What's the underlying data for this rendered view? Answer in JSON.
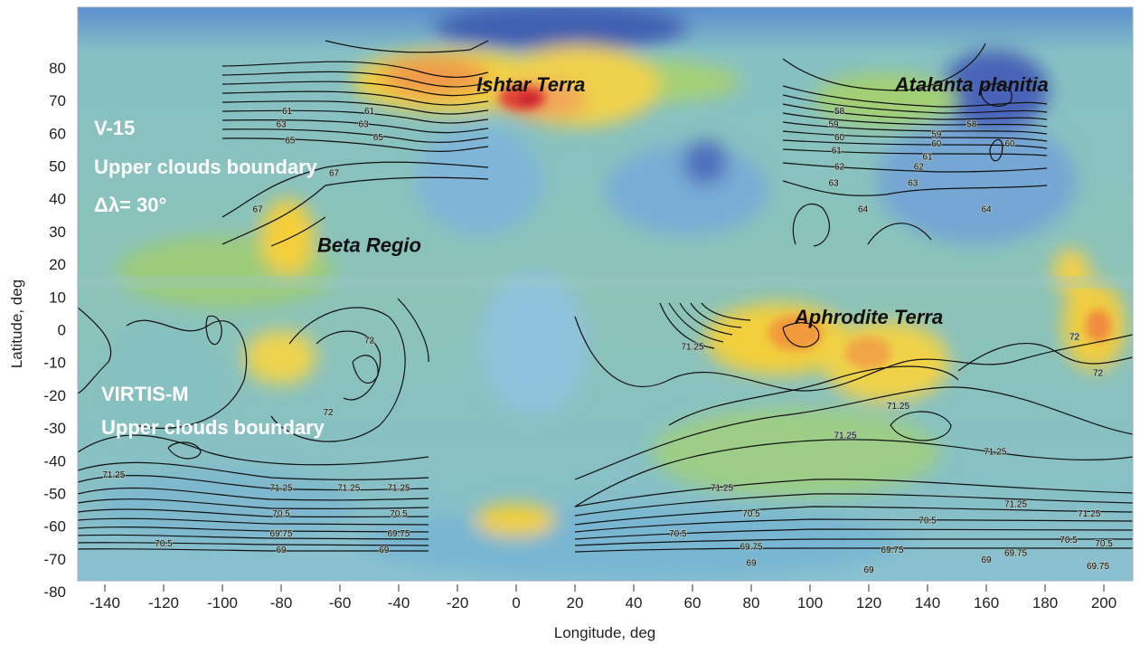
{
  "map": {
    "x_axis_title": "Longitude, deg",
    "y_axis_title": "Latitude, deg",
    "x_ticks": [
      -140,
      -120,
      -100,
      -80,
      -60,
      -40,
      -20,
      0,
      20,
      40,
      60,
      80,
      100,
      120,
      140,
      160,
      180,
      200
    ],
    "y_ticks": [
      80,
      70,
      60,
      50,
      40,
      30,
      20,
      10,
      0,
      -10,
      -20,
      -30,
      -40,
      -50,
      -60,
      -70,
      -80
    ],
    "region_labels": [
      {
        "text": "Ishtar Terra",
        "lon": 5,
        "lat": 75
      },
      {
        "text": "Atalanta planitia",
        "lon": 155,
        "lat": 75
      },
      {
        "text": "Beta Regio",
        "lon": -50,
        "lat": 26
      },
      {
        "text": "Aphrodite Terra",
        "lon": 120,
        "lat": 4
      }
    ],
    "dataset_blocks": [
      {
        "lines": [
          "V-15",
          "Upper clouds boundary",
          "Δλ= 30°"
        ]
      },
      {
        "lines": [
          "VIRTIS-M",
          "Upper clouds boundary"
        ]
      }
    ],
    "contour_labels": [
      {
        "text": "61",
        "lon": -78,
        "lat": 67
      },
      {
        "text": "61",
        "lon": -50,
        "lat": 67
      },
      {
        "text": "63",
        "lon": -80,
        "lat": 63
      },
      {
        "text": "63",
        "lon": -52,
        "lat": 63
      },
      {
        "text": "65",
        "lon": -77,
        "lat": 58
      },
      {
        "text": "65",
        "lon": -47,
        "lat": 59
      },
      {
        "text": "67",
        "lon": -62,
        "lat": 48
      },
      {
        "text": "67",
        "lon": -88,
        "lat": 37
      },
      {
        "text": "58",
        "lon": 110,
        "lat": 67
      },
      {
        "text": "58",
        "lon": 155,
        "lat": 63
      },
      {
        "text": "59",
        "lon": 108,
        "lat": 63
      },
      {
        "text": "59",
        "lon": 143,
        "lat": 60
      },
      {
        "text": "60",
        "lon": 110,
        "lat": 59
      },
      {
        "text": "60",
        "lon": 143,
        "lat": 57
      },
      {
        "text": "61",
        "lon": 109,
        "lat": 55
      },
      {
        "text": "61",
        "lon": 140,
        "lat": 53
      },
      {
        "text": "62",
        "lon": 110,
        "lat": 50
      },
      {
        "text": "62",
        "lon": 137,
        "lat": 50
      },
      {
        "text": "63",
        "lon": 108,
        "lat": 45
      },
      {
        "text": "63",
        "lon": 135,
        "lat": 45
      },
      {
        "text": "64",
        "lon": 118,
        "lat": 37
      },
      {
        "text": "64",
        "lon": 160,
        "lat": 37
      },
      {
        "text": "60",
        "lon": 168,
        "lat": 57
      },
      {
        "text": "72",
        "lon": -50,
        "lat": -3
      },
      {
        "text": "72",
        "lon": -64,
        "lat": -25
      },
      {
        "text": "72",
        "lon": 190,
        "lat": -2
      },
      {
        "text": "72",
        "lon": 198,
        "lat": -13
      },
      {
        "text": "71.25",
        "lon": 60,
        "lat": -5
      },
      {
        "text": "71.25",
        "lon": 130,
        "lat": -23
      },
      {
        "text": "71.25",
        "lon": 112,
        "lat": -32
      },
      {
        "text": "71.25",
        "lon": 163,
        "lat": -37
      },
      {
        "text": "71.25",
        "lon": -137,
        "lat": -44
      },
      {
        "text": "71.25",
        "lon": -80,
        "lat": -48
      },
      {
        "text": "71.25",
        "lon": -57,
        "lat": -48
      },
      {
        "text": "71.25",
        "lon": -40,
        "lat": -48
      },
      {
        "text": "71.25",
        "lon": 70,
        "lat": -48
      },
      {
        "text": "71.25",
        "lon": 170,
        "lat": -53
      },
      {
        "text": "71.25",
        "lon": 195,
        "lat": -56
      },
      {
        "text": "70.5",
        "lon": -80,
        "lat": -56
      },
      {
        "text": "70.5",
        "lon": -40,
        "lat": -56
      },
      {
        "text": "70.5",
        "lon": -120,
        "lat": -65
      },
      {
        "text": "70.5",
        "lon": 55,
        "lat": -62
      },
      {
        "text": "70.5",
        "lon": 80,
        "lat": -56
      },
      {
        "text": "70.5",
        "lon": 140,
        "lat": -58
      },
      {
        "text": "70.5",
        "lon": 188,
        "lat": -64
      },
      {
        "text": "70.5",
        "lon": 200,
        "lat": -65
      },
      {
        "text": "69.75",
        "lon": -80,
        "lat": -62
      },
      {
        "text": "69.75",
        "lon": -40,
        "lat": -62
      },
      {
        "text": "69.75",
        "lon": 80,
        "lat": -66
      },
      {
        "text": "69.75",
        "lon": 128,
        "lat": -67
      },
      {
        "text": "69.75",
        "lon": 170,
        "lat": -68
      },
      {
        "text": "69.75",
        "lon": 198,
        "lat": -72
      },
      {
        "text": "69",
        "lon": -80,
        "lat": -67
      },
      {
        "text": "69",
        "lon": -45,
        "lat": -67
      },
      {
        "text": "69",
        "lon": 80,
        "lat": -71
      },
      {
        "text": "69",
        "lon": 120,
        "lat": -73
      },
      {
        "text": "69",
        "lon": 160,
        "lat": -70
      }
    ],
    "colors": {
      "ocean_low": "#3f6fb8",
      "mid_blue": "#6ea7d4",
      "teal": "#7bbfb3",
      "green": "#8dc47e",
      "yellow": "#f4d23c",
      "orange": "#f29a38",
      "red": "#d8262d",
      "contour": "#111111"
    }
  }
}
